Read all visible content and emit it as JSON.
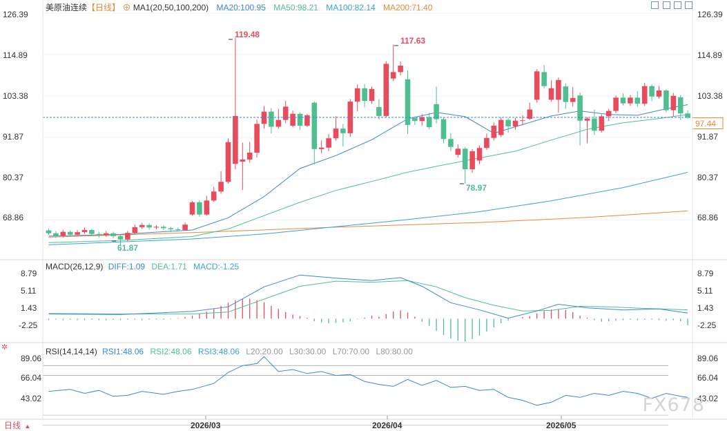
{
  "header": {
    "symbol": "美原油连续",
    "period": "【日线】",
    "add_symbol": "⊕",
    "ma1_label": "MA1(20,50,100,200)",
    "ma20_label": "MA20:100.95",
    "ma50_label": "MA50:98.21",
    "ma100_label": "MA100:82.14",
    "ma200_label": "MA200:71.40"
  },
  "toolbar": {
    "icons": [
      "crosshair-icon",
      "zoom-in-icon",
      "zoom-out-icon",
      "export-icon"
    ]
  },
  "price_axis": {
    "ticks": [
      "126.39",
      "114.89",
      "103.38",
      "91.87",
      "80.37",
      "68.86"
    ],
    "current_price": "97.44"
  },
  "annotations": {
    "high1": "119.48",
    "high2": "117.63",
    "low1": "78.97",
    "low2": "61.87"
  },
  "macd": {
    "title": "MACD(26,12,9)",
    "diff_label": "DIFF:1.09",
    "dea_label": "DEA:1.71",
    "macd_label": "MACD:-1.25",
    "ticks": [
      "8.79",
      "5.11",
      "1.43",
      "-2.25"
    ]
  },
  "rsi": {
    "title": "RSI(14,14,14)",
    "rsi1_label": "RSI1:48.06",
    "rsi2_label": "RSI2:48.06",
    "rsi3_label": "RSI3:48.06",
    "l20": "L20:20.00",
    "l30": "L30:30.00",
    "l70": "L70:70.00",
    "l80": "L80:80.00",
    "ticks": [
      "89.06",
      "66.04",
      "43.02"
    ]
  },
  "x_axis": {
    "labels": [
      "2026/03",
      "2026/04",
      "2026/05"
    ]
  },
  "footer": {
    "period_button": "日线",
    "dropdown": "▲"
  },
  "watermark": "FX678",
  "colors": {
    "up": "#e84b5c",
    "down": "#4fbf8f",
    "ma20": "#3a86d8",
    "ma50": "#4fbf8f",
    "ma100": "#3aa0e0",
    "ma200": "#e8883a",
    "diff": "#3a86d8",
    "dea": "#4fbf8f"
  },
  "chart_data": {
    "type": "candlestick",
    "price_range": [
      59.0,
      128.5
    ],
    "candles": [
      [
        66.0,
        65.2,
        66.5,
        64.8
      ],
      [
        65.2,
        64.5,
        65.8,
        63.9
      ],
      [
        64.5,
        65.6,
        66.2,
        64.0
      ],
      [
        65.6,
        64.8,
        66.0,
        64.3
      ],
      [
        64.8,
        65.5,
        66.1,
        64.5
      ],
      [
        65.5,
        66.1,
        66.8,
        65.0
      ],
      [
        66.1,
        65.0,
        66.4,
        64.6
      ],
      [
        65.0,
        64.7,
        65.6,
        64.0
      ],
      [
        64.7,
        65.2,
        65.8,
        64.2
      ],
      [
        65.2,
        64.4,
        65.6,
        63.8
      ],
      [
        64.4,
        63.5,
        64.9,
        61.87
      ],
      [
        63.5,
        65.3,
        65.9,
        63.0
      ],
      [
        65.3,
        66.9,
        67.6,
        65.0
      ],
      [
        66.9,
        67.5,
        68.1,
        66.4
      ],
      [
        67.5,
        66.8,
        68.0,
        66.2
      ],
      [
        66.8,
        67.0,
        67.5,
        66.3
      ],
      [
        67.0,
        66.6,
        67.4,
        66.0
      ],
      [
        66.6,
        66.3,
        67.0,
        65.5
      ],
      [
        66.3,
        66.1,
        66.8,
        65.7
      ],
      [
        66.1,
        67.6,
        68.2,
        65.9
      ],
      [
        70.4,
        73.8,
        74.2,
        70.1
      ],
      [
        73.8,
        70.4,
        74.4,
        69.8
      ],
      [
        70.4,
        74.3,
        75.6,
        70.1
      ],
      [
        74.3,
        76.8,
        78.1,
        73.9
      ],
      [
        76.8,
        79.5,
        82.5,
        76.2
      ],
      [
        79.5,
        90.5,
        91.6,
        79.0
      ],
      [
        84.5,
        97.8,
        119.48,
        83.0
      ],
      [
        85.1,
        85.7,
        90.4,
        77.2
      ],
      [
        85.7,
        87.6,
        90.6,
        84.8
      ],
      [
        87.6,
        95.6,
        96.8,
        86.3
      ],
      [
        95.6,
        99.0,
        100.6,
        94.3
      ],
      [
        99.0,
        94.8,
        100.0,
        92.9
      ],
      [
        94.8,
        96.7,
        99.8,
        94.2
      ],
      [
        96.7,
        100.4,
        102.0,
        95.8
      ],
      [
        95.1,
        98.4,
        99.3,
        94.6
      ],
      [
        98.4,
        95.1,
        98.8,
        94.0
      ],
      [
        95.1,
        98.0,
        98.4,
        94.7
      ],
      [
        101.5,
        88.6,
        101.9,
        84.3
      ],
      [
        88.6,
        89.0,
        91.0,
        87.4
      ],
      [
        89.0,
        91.6,
        92.8,
        88.0
      ],
      [
        91.6,
        94.3,
        97.7,
        91.0
      ],
      [
        94.3,
        93.0,
        95.6,
        89.3
      ],
      [
        93.0,
        101.8,
        102.5,
        92.0
      ],
      [
        101.8,
        105.5,
        106.6,
        99.1
      ],
      [
        105.5,
        102.0,
        106.7,
        100.2
      ],
      [
        102.0,
        105.3,
        106.0,
        101.2
      ],
      [
        100.3,
        97.8,
        102.5,
        96.8
      ],
      [
        97.8,
        112.3,
        113.0,
        97.4
      ],
      [
        108.2,
        110.0,
        117.63,
        107.5
      ],
      [
        110.0,
        111.8,
        112.9,
        109.1
      ],
      [
        108.0,
        95.3,
        110.4,
        92.8
      ],
      [
        97.2,
        96.4,
        97.7,
        95.3
      ],
      [
        96.4,
        97.5,
        98.3,
        95.1
      ],
      [
        97.5,
        94.7,
        98.7,
        94.1
      ],
      [
        101.1,
        96.9,
        106.0,
        95.7
      ],
      [
        96.9,
        91.4,
        97.5,
        90.2
      ],
      [
        91.4,
        89.2,
        93.0,
        88.0
      ],
      [
        87.0,
        88.7,
        89.9,
        86.3
      ],
      [
        88.7,
        83.0,
        89.2,
        78.97
      ],
      [
        83.0,
        88.0,
        88.6,
        82.0
      ],
      [
        85.4,
        88.9,
        89.6,
        84.4
      ],
      [
        88.9,
        91.7,
        92.9,
        88.4
      ],
      [
        91.7,
        95.1,
        96.0,
        91.0
      ],
      [
        92.5,
        96.7,
        97.4,
        92.0
      ],
      [
        96.7,
        94.9,
        97.2,
        93.1
      ],
      [
        94.9,
        96.5,
        97.3,
        94.0
      ],
      [
        96.5,
        96.6,
        98.0,
        95.2
      ],
      [
        97.0,
        99.6,
        101.5,
        96.7
      ],
      [
        102.3,
        110.2,
        110.8,
        101.5
      ],
      [
        110.0,
        106.1,
        112.0,
        105.4
      ],
      [
        102.3,
        105.5,
        107.7,
        101.8
      ],
      [
        102.3,
        107.8,
        108.5,
        98.7
      ],
      [
        106.0,
        101.7,
        106.9,
        99.8
      ],
      [
        101.7,
        102.8,
        105.8,
        100.4
      ],
      [
        103.5,
        96.5,
        104.3,
        89.6
      ],
      [
        96.5,
        97.1,
        97.5,
        90.2
      ],
      [
        97.1,
        93.7,
        99.6,
        92.5
      ],
      [
        93.7,
        97.7,
        98.3,
        93.2
      ],
      [
        97.7,
        99.2,
        99.8,
        96.4
      ],
      [
        99.2,
        102.9,
        103.5,
        98.6
      ],
      [
        102.9,
        101.3,
        104.1,
        100.7
      ],
      [
        101.3,
        102.9,
        103.6,
        100.6
      ],
      [
        102.9,
        101.2,
        104.7,
        100.4
      ],
      [
        101.2,
        106.1,
        107.0,
        100.6
      ],
      [
        106.1,
        103.2,
        106.6,
        101.9
      ],
      [
        103.2,
        104.9,
        106.1,
        102.6
      ],
      [
        104.9,
        99.4,
        105.2,
        98.8
      ],
      [
        99.4,
        103.4,
        104.2,
        97.6
      ],
      [
        103.0,
        98.5,
        103.6,
        96.7
      ],
      [
        98.5,
        97.44,
        99.4,
        97.0
      ]
    ],
    "ma20_points": [
      [
        0,
        64.4
      ],
      [
        10,
        64.9
      ],
      [
        20,
        66.1
      ],
      [
        25,
        69.5
      ],
      [
        30,
        75.4
      ],
      [
        35,
        83.2
      ],
      [
        40,
        86.8
      ],
      [
        45,
        91.2
      ],
      [
        50,
        97.0
      ],
      [
        54,
        98.8
      ],
      [
        58,
        97.6
      ],
      [
        62,
        93.0
      ],
      [
        66,
        95.4
      ],
      [
        70,
        97.8
      ],
      [
        74,
        99.2
      ],
      [
        78,
        98.2
      ],
      [
        82,
        98.0
      ],
      [
        86,
        99.8
      ],
      [
        89,
        100.95
      ]
    ],
    "ma50_points": [
      [
        0,
        62.6
      ],
      [
        10,
        63.2
      ],
      [
        20,
        64.3
      ],
      [
        25,
        66.4
      ],
      [
        30,
        70.1
      ],
      [
        35,
        73.8
      ],
      [
        40,
        77.1
      ],
      [
        45,
        79.6
      ],
      [
        50,
        82.2
      ],
      [
        55,
        84.2
      ],
      [
        60,
        86.1
      ],
      [
        65,
        88.0
      ],
      [
        70,
        91.1
      ],
      [
        75,
        94.1
      ],
      [
        80,
        95.9
      ],
      [
        85,
        97.1
      ],
      [
        89,
        98.21
      ]
    ],
    "ma100_points": [
      [
        0,
        62.0
      ],
      [
        20,
        63.6
      ],
      [
        30,
        65.0
      ],
      [
        40,
        67.0
      ],
      [
        50,
        69.0
      ],
      [
        60,
        71.2
      ],
      [
        70,
        74.2
      ],
      [
        80,
        77.9
      ],
      [
        89,
        82.14
      ]
    ],
    "ma200_points": [
      [
        0,
        64.1
      ],
      [
        20,
        65.4
      ],
      [
        40,
        66.9
      ],
      [
        60,
        68.2
      ],
      [
        75,
        69.6
      ],
      [
        89,
        71.4
      ]
    ],
    "macd_range": [
      -4.8,
      9.6
    ],
    "diff_points": [
      [
        0,
        0.9
      ],
      [
        10,
        0.8
      ],
      [
        20,
        1.4
      ],
      [
        25,
        2.3
      ],
      [
        30,
        6.2
      ],
      [
        35,
        8.5
      ],
      [
        40,
        7.9
      ],
      [
        45,
        7.4
      ],
      [
        49,
        8.0
      ],
      [
        52,
        6.3
      ],
      [
        56,
        3.1
      ],
      [
        60,
        1.7
      ],
      [
        64,
        0.1
      ],
      [
        68,
        1.5
      ],
      [
        71,
        2.8
      ],
      [
        75,
        2.1
      ],
      [
        80,
        1.7
      ],
      [
        85,
        1.9
      ],
      [
        89,
        1.09
      ]
    ],
    "dea_points": [
      [
        0,
        1.0
      ],
      [
        10,
        0.9
      ],
      [
        20,
        0.9
      ],
      [
        25,
        1.3
      ],
      [
        30,
        3.8
      ],
      [
        35,
        6.3
      ],
      [
        40,
        7.3
      ],
      [
        45,
        7.1
      ],
      [
        50,
        7.4
      ],
      [
        54,
        6.2
      ],
      [
        58,
        4.1
      ],
      [
        62,
        2.6
      ],
      [
        66,
        1.5
      ],
      [
        70,
        1.6
      ],
      [
        74,
        2.4
      ],
      [
        78,
        2.3
      ],
      [
        83,
        2.0
      ],
      [
        89,
        1.71
      ]
    ],
    "macd_hist": [
      -0.3,
      -0.2,
      -0.3,
      -0.2,
      -0.3,
      -0.3,
      -0.2,
      -0.3,
      -0.3,
      -0.2,
      -0.3,
      -0.2,
      -0.2,
      -0.3,
      -0.2,
      -0.2,
      -0.2,
      -0.1,
      0.1,
      0.3,
      0.6,
      1.0,
      1.4,
      1.9,
      2.5,
      3.1,
      3.6,
      3.9,
      3.9,
      3.6,
      3.2,
      2.5,
      1.9,
      1.3,
      0.8,
      0.5,
      0.2,
      -0.5,
      -0.8,
      -0.9,
      -0.8,
      -0.7,
      -0.5,
      -0.1,
      0.2,
      0.6,
      0.4,
      0.9,
      1.4,
      1.6,
      1.2,
      0.4,
      -0.6,
      -1.4,
      -2.4,
      -3.2,
      -3.9,
      -4.3,
      -4.5,
      -4.0,
      -3.3,
      -2.5,
      -1.7,
      -0.9,
      -0.4,
      0.0,
      0.3,
      0.5,
      1.0,
      1.5,
      1.8,
      1.8,
      1.7,
      1.3,
      0.6,
      0.2,
      -0.3,
      -0.6,
      -0.5,
      -0.4,
      -0.3,
      -0.2,
      -0.3,
      -0.2,
      -0.2,
      -0.3,
      -0.4,
      -0.3,
      -0.5,
      -1.25
    ],
    "rsi_range": [
      28.0,
      92.0
    ],
    "rsi_points": [
      [
        0,
        54
      ],
      [
        3,
        56
      ],
      [
        5,
        52
      ],
      [
        7,
        55
      ],
      [
        9,
        49
      ],
      [
        11,
        50
      ],
      [
        13,
        54
      ],
      [
        16,
        51
      ],
      [
        18,
        54
      ],
      [
        20,
        56
      ],
      [
        23,
        62
      ],
      [
        25,
        73
      ],
      [
        27,
        80
      ],
      [
        29,
        82
      ],
      [
        30,
        89
      ],
      [
        32,
        74
      ],
      [
        34,
        76
      ],
      [
        36,
        72
      ],
      [
        38,
        74
      ],
      [
        40,
        70
      ],
      [
        42,
        71
      ],
      [
        44,
        64
      ],
      [
        46,
        61
      ],
      [
        48,
        59
      ],
      [
        50,
        66
      ],
      [
        52,
        60
      ],
      [
        54,
        65
      ],
      [
        56,
        58
      ],
      [
        58,
        59
      ],
      [
        60,
        55
      ],
      [
        62,
        56
      ],
      [
        64,
        48
      ],
      [
        66,
        45
      ],
      [
        68,
        40
      ],
      [
        70,
        43
      ],
      [
        72,
        50
      ],
      [
        74,
        48
      ],
      [
        76,
        52
      ],
      [
        78,
        50
      ],
      [
        80,
        54
      ],
      [
        82,
        52
      ],
      [
        84,
        47
      ],
      [
        86,
        52
      ],
      [
        88,
        49
      ],
      [
        89,
        48.06
      ]
    ]
  }
}
